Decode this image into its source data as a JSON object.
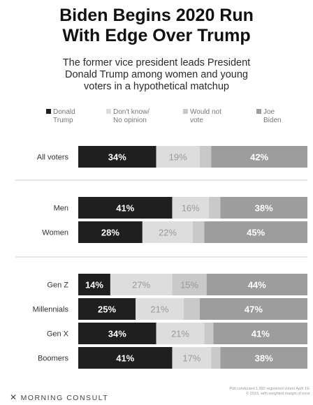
{
  "title_line1": "Biden Begins 2020 Run",
  "title_line2": "With Edge Over Trump",
  "subtitle_line1": "The former vice president leads President",
  "subtitle_line2": "Donald Trump among women and young",
  "subtitle_line3": "voters in a hypothetical matchup",
  "colors": {
    "trump": "#1f1f1f",
    "dont_know": "#dddddd",
    "would_not_vote": "#c9c9c9",
    "biden": "#9d9d9d",
    "separator": "#cfcfcf"
  },
  "legend": [
    {
      "line1": "Donald",
      "line2": "Trump",
      "color": "#1f1f1f"
    },
    {
      "line1": "Don't know/",
      "line2": "No opinion",
      "color": "#dddddd"
    },
    {
      "line1": "Would not",
      "line2": "vote",
      "color": "#c9c9c9"
    },
    {
      "line1": "Joe",
      "line2": "Biden",
      "color": "#9d9d9d"
    }
  ],
  "footer_brand": "MORNING CONSULT",
  "footer_note_line1": "Poll conducted 1,992 registered voters April 19-",
  "footer_note_line2": "© 2019, with weighted margin of error",
  "chart_data": {
    "type": "bar",
    "stacked": true,
    "orientation": "horizontal",
    "categories": [
      "All voters",
      "Men",
      "Women",
      "Gen Z",
      "Millennials",
      "Gen X",
      "Boomers"
    ],
    "groups": [
      [
        "All voters"
      ],
      [
        "Men",
        "Women"
      ],
      [
        "Gen Z",
        "Millennials",
        "Gen X",
        "Boomers"
      ]
    ],
    "series": [
      {
        "name": "Donald Trump",
        "values": [
          34,
          41,
          28,
          14,
          25,
          34,
          41
        ]
      },
      {
        "name": "Don't know/ No opinion",
        "values": [
          19,
          16,
          22,
          27,
          21,
          21,
          17
        ]
      },
      {
        "name": "Would not vote",
        "values": [
          5,
          5,
          5,
          15,
          7,
          4,
          4
        ]
      },
      {
        "name": "Joe Biden",
        "values": [
          42,
          38,
          45,
          44,
          47,
          41,
          38
        ]
      }
    ],
    "labels_shown_for": [
      "Donald Trump",
      "Don't know/ No opinion",
      "Would not vote",
      "Joe Biden"
    ],
    "hidden_labels": [
      [
        false,
        false,
        true,
        false
      ],
      [
        false,
        false,
        true,
        false
      ],
      [
        false,
        false,
        true,
        false
      ],
      [
        false,
        false,
        false,
        false
      ],
      [
        false,
        false,
        true,
        false
      ],
      [
        false,
        false,
        true,
        false
      ],
      [
        false,
        false,
        true,
        false
      ]
    ],
    "value_suffix": "%",
    "legend_position": "top",
    "grid": false
  }
}
